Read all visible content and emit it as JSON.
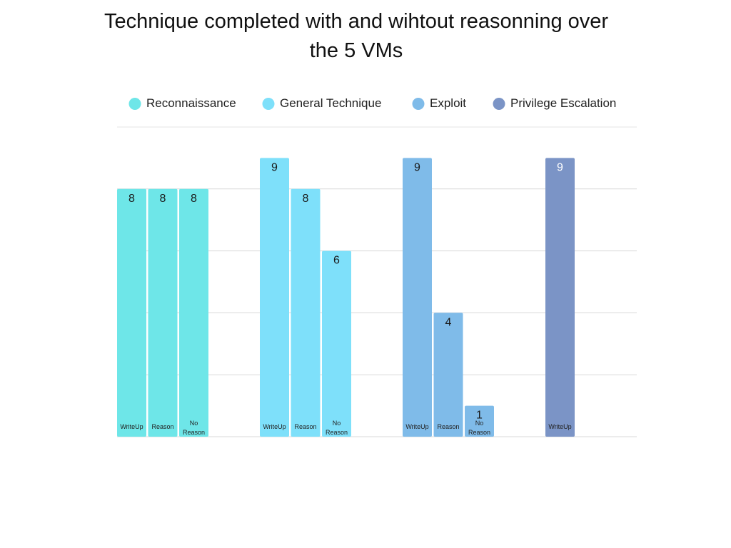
{
  "chart_data": {
    "type": "bar",
    "title": "Technique completed with and wihtout reasonning over the 5 VMs",
    "xlabel": "",
    "ylabel": "",
    "ylim": [
      0,
      9
    ],
    "grid": true,
    "legend_position": "top",
    "legend": [
      {
        "name": "Reconnaissance",
        "color": "#6ee6e8"
      },
      {
        "name": "General Technique",
        "color": "#7ee0fa"
      },
      {
        "name": "Exploit",
        "color": "#7fbbe9"
      },
      {
        "name": "Privilege Escalation",
        "color": "#7b94c6"
      }
    ],
    "groups": [
      {
        "name": "Reconnaissance",
        "color": "#6ee6e8",
        "bars": [
          {
            "label": "WriteUp",
            "value": 8
          },
          {
            "label": "Reason",
            "value": 8
          },
          {
            "label": "No Reason",
            "value": 8
          }
        ]
      },
      {
        "name": "General Technique",
        "color": "#7ee0fa",
        "bars": [
          {
            "label": "WriteUp",
            "value": 9
          },
          {
            "label": "Reason",
            "value": 8
          },
          {
            "label": "No Reason",
            "value": 6
          }
        ]
      },
      {
        "name": "Exploit",
        "color": "#7fbbe9",
        "bars": [
          {
            "label": "WriteUp",
            "value": 9
          },
          {
            "label": "Reason",
            "value": 4
          },
          {
            "label": "No Reason",
            "value": 1
          }
        ]
      },
      {
        "name": "Privilege Escalation",
        "color": "#7b94c6",
        "bars": [
          {
            "label": "WriteUp",
            "value": 9
          }
        ]
      }
    ]
  }
}
